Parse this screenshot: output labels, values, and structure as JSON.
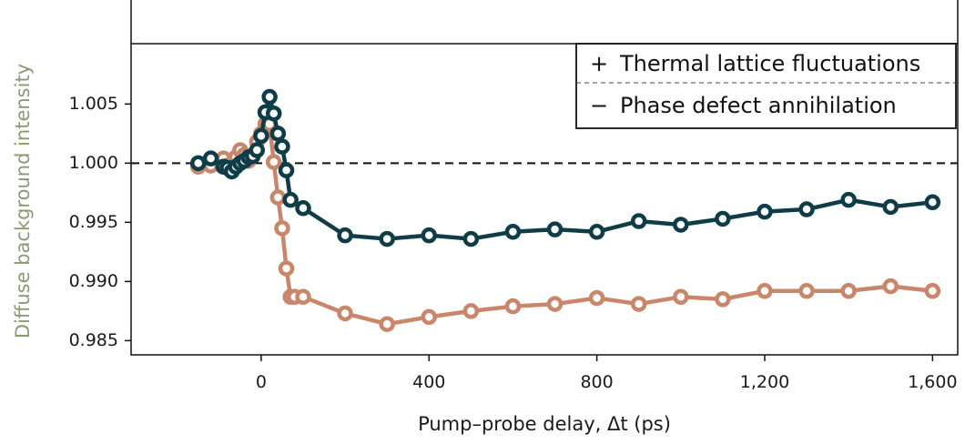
{
  "chart_data": {
    "type": "line",
    "title": "",
    "xlabel": "Pump–probe delay, Δt (ps)",
    "ylabel": "Diffuse background intensity",
    "xlim": [
      -310,
      1660
    ],
    "ylim": [
      0.9838,
      1.0101
    ],
    "xticks": [
      0,
      400,
      800,
      1200,
      1600
    ],
    "xtick_labels": [
      "0",
      "400",
      "800",
      "1,200",
      "1,600"
    ],
    "yticks": [
      0.985,
      0.99,
      0.995,
      1.0,
      1.005
    ],
    "ytick_labels": [
      "0.985",
      "0.990",
      "0.995",
      "1.000",
      "1.005"
    ],
    "reference_line": {
      "y": 1.0,
      "style": "dashed"
    },
    "colors": {
      "thermal": "#c9866a",
      "phase": "#0e3d48",
      "ylabel": "#8a9a72"
    },
    "series": [
      {
        "name": "Thermal lattice fluctuations",
        "color": "#c9866a",
        "x": [
          -150,
          -120,
          -90,
          -80,
          -70,
          -60,
          -50,
          -40,
          -30,
          -20,
          -10,
          0,
          10,
          20,
          30,
          40,
          50,
          60,
          70,
          80,
          100,
          200,
          300,
          400,
          500,
          600,
          700,
          800,
          900,
          1000,
          1100,
          1200,
          1300,
          1400,
          1500,
          1600
        ],
        "y": [
          0.9997,
          0.9998,
          1.0004,
          0.9998,
          0.9997,
          1.0005,
          1.0011,
          1.0007,
          1.0002,
          1.0007,
          1.0018,
          1.0025,
          1.0033,
          1.0033,
          1.0001,
          0.9971,
          0.9945,
          0.9911,
          0.9887,
          0.9887,
          0.9887,
          0.9873,
          0.9864,
          0.987,
          0.9875,
          0.9879,
          0.9881,
          0.9886,
          0.9881,
          0.9887,
          0.9885,
          0.9892,
          0.9892,
          0.9892,
          0.9896,
          0.9892
        ]
      },
      {
        "name": "Phase defect annihilation",
        "color": "#0e3d48",
        "x": [
          -150,
          -120,
          -90,
          -80,
          -70,
          -60,
          -50,
          -40,
          -30,
          -20,
          -10,
          0,
          10,
          20,
          30,
          40,
          50,
          60,
          70,
          100,
          200,
          300,
          400,
          500,
          600,
          700,
          800,
          900,
          1000,
          1100,
          1200,
          1300,
          1400,
          1500,
          1600
        ],
        "y": [
          1.0,
          1.0004,
          0.9997,
          0.9996,
          0.9993,
          0.9997,
          1.0,
          1.0002,
          1.0005,
          1.0006,
          1.0011,
          1.0023,
          1.0043,
          1.0056,
          1.0042,
          1.0025,
          1.0014,
          0.9994,
          0.9969,
          0.9962,
          0.9939,
          0.9936,
          0.9939,
          0.9936,
          0.9942,
          0.9944,
          0.9942,
          0.9951,
          0.9948,
          0.9953,
          0.9959,
          0.9961,
          0.9969,
          0.9963,
          0.9967
        ]
      }
    ],
    "legend": {
      "placement": "top-right",
      "entries": [
        {
          "symbol": "+",
          "label": "Thermal lattice fluctuations"
        },
        {
          "symbol": "−",
          "label": "Phase defect annihilation"
        }
      ]
    }
  }
}
